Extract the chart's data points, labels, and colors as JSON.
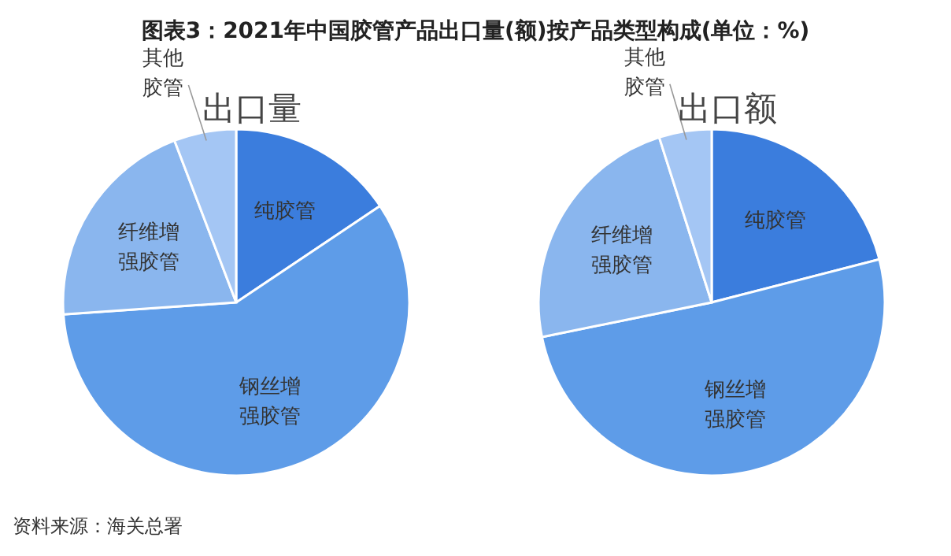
{
  "chart_data": [
    {
      "type": "pie",
      "title": "出口量",
      "categories": [
        "纯胶管",
        "钢丝增强胶管",
        "纤维增强胶管",
        "其他胶管"
      ],
      "values": [
        15.6,
        58.3,
        20.3,
        5.8
      ],
      "colors": [
        "#3b7ddd",
        "#5e9ce8",
        "#8ab6ee",
        "#a4c6f4"
      ],
      "annotations": [
        "图表3：2021年中国胶管产品出口量(额)按产品类型构成(单位：%)",
        "资料来源：海关总署"
      ]
    },
    {
      "type": "pie",
      "title": "出口额",
      "categories": [
        "纯胶管",
        "钢丝增强胶管",
        "纤维增强胶管",
        "其他胶管"
      ],
      "values": [
        21,
        50.8,
        23.3,
        4.9
      ],
      "colors": [
        "#3b7ddd",
        "#5e9ce8",
        "#8ab6ee",
        "#a4c6f4"
      ]
    }
  ]
}
